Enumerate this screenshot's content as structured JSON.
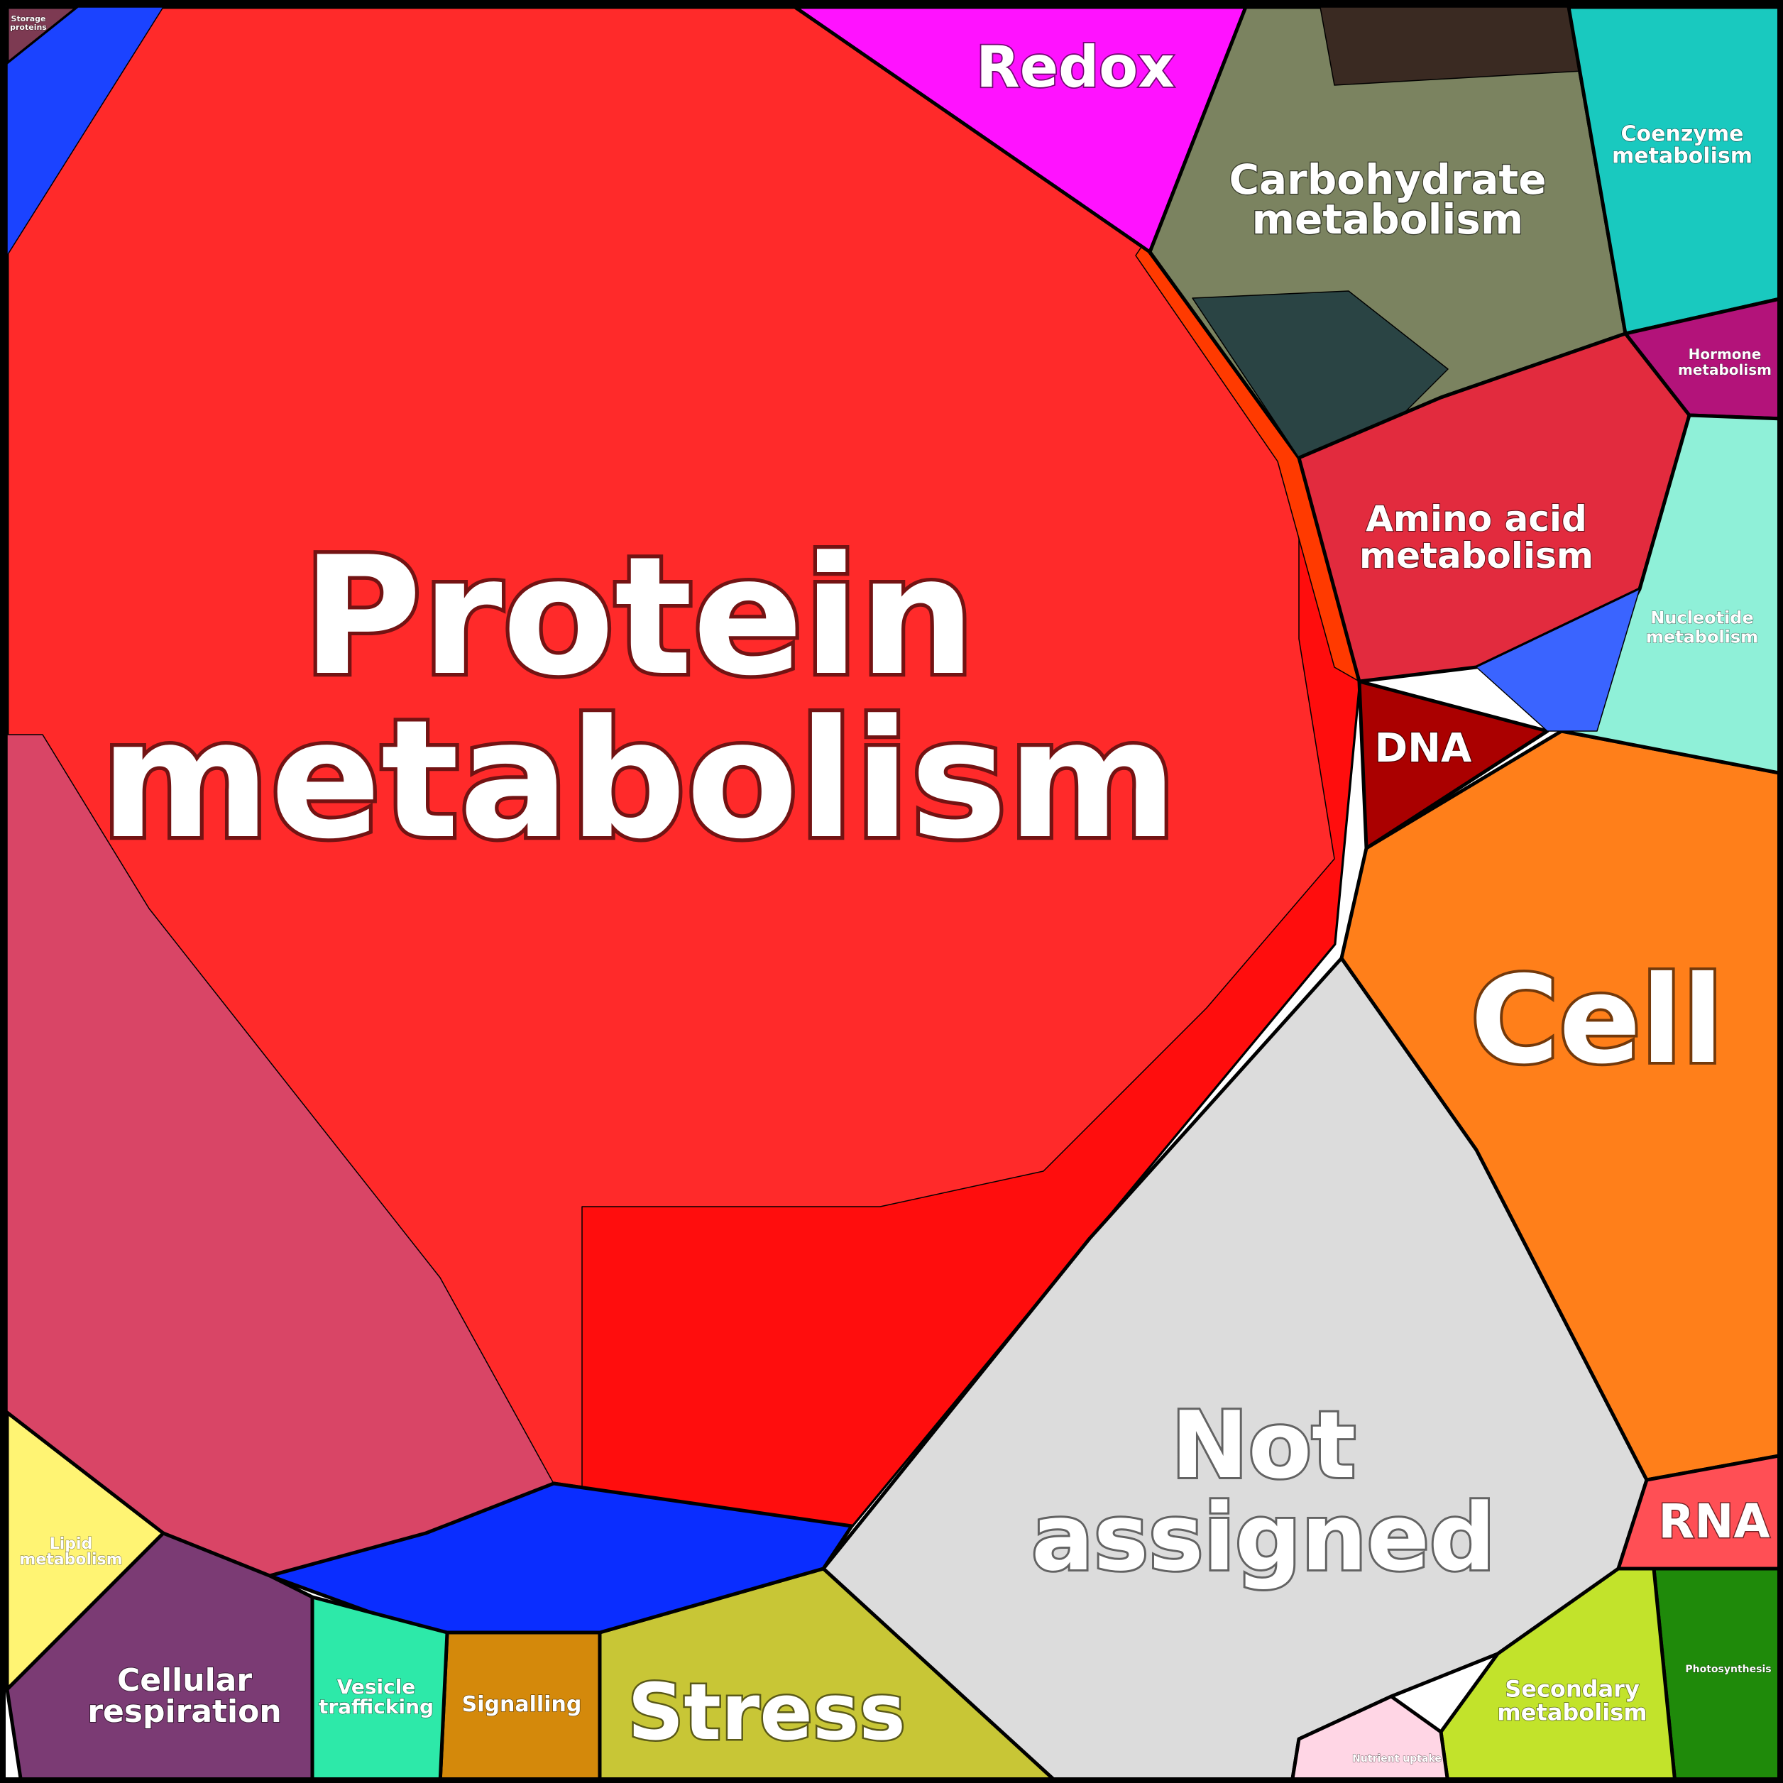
{
  "chart_data": {
    "type": "voronoi-treemap",
    "categories": [
      {
        "name": "Protein\nmetabolism",
        "color": "#ff2a2a"
      },
      {
        "name": "Not\nassigned",
        "color": "#dcdcdc"
      },
      {
        "name": "Cell",
        "color": "#ff7f1a"
      },
      {
        "name": "Redox",
        "color": "#ff12ff"
      },
      {
        "name": "Carbohydrate\nmetabolism",
        "color": "#7b8360"
      },
      {
        "name": "Coenzyme\nmetabolism",
        "color": "#19c9bf"
      },
      {
        "name": "Hormone\nmetabolism",
        "color": "#b3137a"
      },
      {
        "name": "Amino acid\nmetabolism",
        "color": "#e22b3e"
      },
      {
        "name": "Nucleotide\nmetabolism",
        "color": "#8ff0d8"
      },
      {
        "name": "DNA",
        "color": "#aa0000"
      },
      {
        "name": "RNA",
        "color": "#ff4f55"
      },
      {
        "name": "Photosynthesis",
        "color": "#1f8a0a"
      },
      {
        "name": "Secondary\nmetabolism",
        "color": "#c2e32b"
      },
      {
        "name": "Nutrient uptake",
        "color": "#ffd6e5"
      },
      {
        "name": "Stress",
        "color": "#c8c636"
      },
      {
        "name": "Signalling",
        "color": "#d4890b"
      },
      {
        "name": "Vesicle\ntrafficking",
        "color": "#2de9a9"
      },
      {
        "name": "Cellular\nrespiration",
        "color": "#7b3b74"
      },
      {
        "name": "Lipid\nmetabolism",
        "color": "#fff473"
      },
      {
        "name": "Storage\nproteins",
        "color": "#7d3a52"
      }
    ]
  }
}
